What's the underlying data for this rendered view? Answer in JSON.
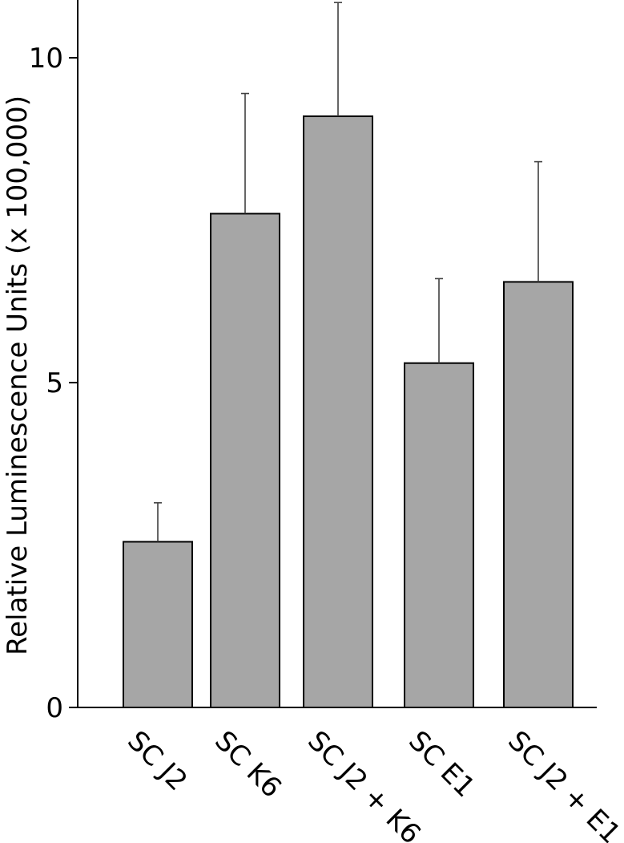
{
  "chart_data": {
    "type": "bar",
    "title": "",
    "xlabel": "",
    "ylabel": "Relative Luminescence Units (x 100,000)",
    "categories": [
      "SC J2",
      "SC K6",
      "SC J2 + K6",
      "SC E1",
      "SC J2 + E1"
    ],
    "values": [
      2.55,
      7.6,
      9.1,
      5.3,
      6.55
    ],
    "error_upper": [
      3.15,
      9.45,
      10.85,
      6.6,
      8.4
    ],
    "ylim": [
      0,
      10.9
    ],
    "yticks": [
      0,
      5,
      10
    ],
    "ytick_labels": [
      "0",
      "5",
      "10"
    ],
    "grid": false,
    "bar_color": "#a6a6a6",
    "edge_color": "#000000",
    "error_color": "#404040"
  }
}
